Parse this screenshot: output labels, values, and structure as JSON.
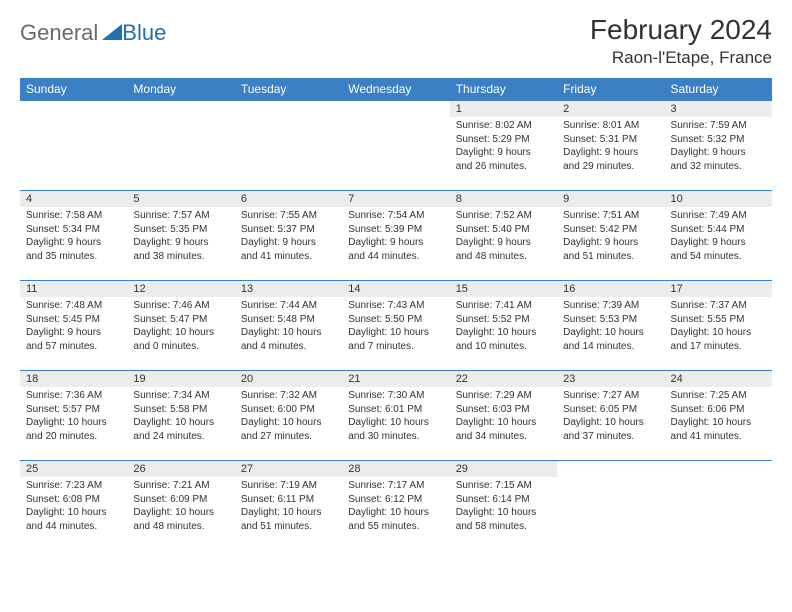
{
  "logo": {
    "general": "General",
    "blue": "Blue"
  },
  "title": "February 2024",
  "location": "Raon-l'Etape, France",
  "colors": {
    "header_bg": "#3b7fc4",
    "header_text": "#ffffff",
    "daynum_bg": "#ececec",
    "border": "#3b7fc4",
    "logo_general": "#6a6a6a",
    "logo_blue": "#1f6fb2"
  },
  "weekdays": [
    "Sunday",
    "Monday",
    "Tuesday",
    "Wednesday",
    "Thursday",
    "Friday",
    "Saturday"
  ],
  "weeks": [
    [
      null,
      null,
      null,
      null,
      {
        "n": "1",
        "sr": "Sunrise: 8:02 AM",
        "ss": "Sunset: 5:29 PM",
        "dl1": "Daylight: 9 hours",
        "dl2": "and 26 minutes."
      },
      {
        "n": "2",
        "sr": "Sunrise: 8:01 AM",
        "ss": "Sunset: 5:31 PM",
        "dl1": "Daylight: 9 hours",
        "dl2": "and 29 minutes."
      },
      {
        "n": "3",
        "sr": "Sunrise: 7:59 AM",
        "ss": "Sunset: 5:32 PM",
        "dl1": "Daylight: 9 hours",
        "dl2": "and 32 minutes."
      }
    ],
    [
      {
        "n": "4",
        "sr": "Sunrise: 7:58 AM",
        "ss": "Sunset: 5:34 PM",
        "dl1": "Daylight: 9 hours",
        "dl2": "and 35 minutes."
      },
      {
        "n": "5",
        "sr": "Sunrise: 7:57 AM",
        "ss": "Sunset: 5:35 PM",
        "dl1": "Daylight: 9 hours",
        "dl2": "and 38 minutes."
      },
      {
        "n": "6",
        "sr": "Sunrise: 7:55 AM",
        "ss": "Sunset: 5:37 PM",
        "dl1": "Daylight: 9 hours",
        "dl2": "and 41 minutes."
      },
      {
        "n": "7",
        "sr": "Sunrise: 7:54 AM",
        "ss": "Sunset: 5:39 PM",
        "dl1": "Daylight: 9 hours",
        "dl2": "and 44 minutes."
      },
      {
        "n": "8",
        "sr": "Sunrise: 7:52 AM",
        "ss": "Sunset: 5:40 PM",
        "dl1": "Daylight: 9 hours",
        "dl2": "and 48 minutes."
      },
      {
        "n": "9",
        "sr": "Sunrise: 7:51 AM",
        "ss": "Sunset: 5:42 PM",
        "dl1": "Daylight: 9 hours",
        "dl2": "and 51 minutes."
      },
      {
        "n": "10",
        "sr": "Sunrise: 7:49 AM",
        "ss": "Sunset: 5:44 PM",
        "dl1": "Daylight: 9 hours",
        "dl2": "and 54 minutes."
      }
    ],
    [
      {
        "n": "11",
        "sr": "Sunrise: 7:48 AM",
        "ss": "Sunset: 5:45 PM",
        "dl1": "Daylight: 9 hours",
        "dl2": "and 57 minutes."
      },
      {
        "n": "12",
        "sr": "Sunrise: 7:46 AM",
        "ss": "Sunset: 5:47 PM",
        "dl1": "Daylight: 10 hours",
        "dl2": "and 0 minutes."
      },
      {
        "n": "13",
        "sr": "Sunrise: 7:44 AM",
        "ss": "Sunset: 5:48 PM",
        "dl1": "Daylight: 10 hours",
        "dl2": "and 4 minutes."
      },
      {
        "n": "14",
        "sr": "Sunrise: 7:43 AM",
        "ss": "Sunset: 5:50 PM",
        "dl1": "Daylight: 10 hours",
        "dl2": "and 7 minutes."
      },
      {
        "n": "15",
        "sr": "Sunrise: 7:41 AM",
        "ss": "Sunset: 5:52 PM",
        "dl1": "Daylight: 10 hours",
        "dl2": "and 10 minutes."
      },
      {
        "n": "16",
        "sr": "Sunrise: 7:39 AM",
        "ss": "Sunset: 5:53 PM",
        "dl1": "Daylight: 10 hours",
        "dl2": "and 14 minutes."
      },
      {
        "n": "17",
        "sr": "Sunrise: 7:37 AM",
        "ss": "Sunset: 5:55 PM",
        "dl1": "Daylight: 10 hours",
        "dl2": "and 17 minutes."
      }
    ],
    [
      {
        "n": "18",
        "sr": "Sunrise: 7:36 AM",
        "ss": "Sunset: 5:57 PM",
        "dl1": "Daylight: 10 hours",
        "dl2": "and 20 minutes."
      },
      {
        "n": "19",
        "sr": "Sunrise: 7:34 AM",
        "ss": "Sunset: 5:58 PM",
        "dl1": "Daylight: 10 hours",
        "dl2": "and 24 minutes."
      },
      {
        "n": "20",
        "sr": "Sunrise: 7:32 AM",
        "ss": "Sunset: 6:00 PM",
        "dl1": "Daylight: 10 hours",
        "dl2": "and 27 minutes."
      },
      {
        "n": "21",
        "sr": "Sunrise: 7:30 AM",
        "ss": "Sunset: 6:01 PM",
        "dl1": "Daylight: 10 hours",
        "dl2": "and 30 minutes."
      },
      {
        "n": "22",
        "sr": "Sunrise: 7:29 AM",
        "ss": "Sunset: 6:03 PM",
        "dl1": "Daylight: 10 hours",
        "dl2": "and 34 minutes."
      },
      {
        "n": "23",
        "sr": "Sunrise: 7:27 AM",
        "ss": "Sunset: 6:05 PM",
        "dl1": "Daylight: 10 hours",
        "dl2": "and 37 minutes."
      },
      {
        "n": "24",
        "sr": "Sunrise: 7:25 AM",
        "ss": "Sunset: 6:06 PM",
        "dl1": "Daylight: 10 hours",
        "dl2": "and 41 minutes."
      }
    ],
    [
      {
        "n": "25",
        "sr": "Sunrise: 7:23 AM",
        "ss": "Sunset: 6:08 PM",
        "dl1": "Daylight: 10 hours",
        "dl2": "and 44 minutes."
      },
      {
        "n": "26",
        "sr": "Sunrise: 7:21 AM",
        "ss": "Sunset: 6:09 PM",
        "dl1": "Daylight: 10 hours",
        "dl2": "and 48 minutes."
      },
      {
        "n": "27",
        "sr": "Sunrise: 7:19 AM",
        "ss": "Sunset: 6:11 PM",
        "dl1": "Daylight: 10 hours",
        "dl2": "and 51 minutes."
      },
      {
        "n": "28",
        "sr": "Sunrise: 7:17 AM",
        "ss": "Sunset: 6:12 PM",
        "dl1": "Daylight: 10 hours",
        "dl2": "and 55 minutes."
      },
      {
        "n": "29",
        "sr": "Sunrise: 7:15 AM",
        "ss": "Sunset: 6:14 PM",
        "dl1": "Daylight: 10 hours",
        "dl2": "and 58 minutes."
      },
      null,
      null
    ]
  ]
}
